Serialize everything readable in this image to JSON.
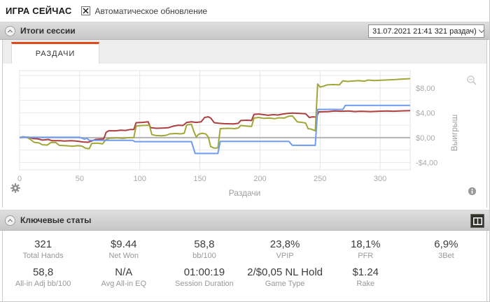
{
  "top_bar": {
    "title": "ИГРА СЕЙЧАС",
    "auto_update_label": "Автоматическое обновление",
    "auto_update_checked": true
  },
  "session_panel": {
    "header": "Итоги сессии",
    "session_select_value": "31.07.2021 21:41 321 раздач)",
    "tab_label": "РАЗДАЧИ"
  },
  "chart_data": {
    "type": "line",
    "title": "",
    "xlabel": "Раздачи",
    "ylabel": "Выигрыш",
    "xlim": [
      0,
      325
    ],
    "ylim": [
      -5.2,
      10.8
    ],
    "x_ticks": [
      0,
      50,
      100,
      150,
      200,
      250,
      300
    ],
    "y_grid_step": 2,
    "y_tick_labels": [
      {
        "value": 8,
        "label": "$8,00"
      },
      {
        "value": 4,
        "label": "$4,00"
      },
      {
        "value": 0,
        "label": "$0,00"
      },
      {
        "value": -4,
        "label": "-$4,00"
      }
    ],
    "zero_line_color": "#b3b3b3",
    "grid_color": "#e6e6e6",
    "legend": "none",
    "series": [
      {
        "name": "red-line",
        "color": "#ad3f3f",
        "points": [
          [
            0,
            0
          ],
          [
            4,
            0.1
          ],
          [
            8,
            0.05
          ],
          [
            11,
            -0.15
          ],
          [
            15,
            -0.2
          ],
          [
            19,
            -0.4
          ],
          [
            24,
            -0.3
          ],
          [
            27,
            -0.5
          ],
          [
            34,
            -0.5
          ],
          [
            37,
            -0.55
          ],
          [
            43,
            -0.5
          ],
          [
            47,
            -0.55
          ],
          [
            53,
            -0.7
          ],
          [
            57,
            -0.75
          ],
          [
            60,
            -0.55
          ],
          [
            63,
            -0.3
          ],
          [
            66,
            -0.25
          ],
          [
            70,
            -0.2
          ],
          [
            72,
            0.85
          ],
          [
            74,
            1.1
          ],
          [
            80,
            1.1
          ],
          [
            84,
            1.2
          ],
          [
            88,
            1.15
          ],
          [
            92,
            1.3
          ],
          [
            95,
            1.3
          ],
          [
            97,
            2.4
          ],
          [
            102,
            2.45
          ],
          [
            107,
            2.55
          ],
          [
            109,
            1.6
          ],
          [
            114,
            1.5
          ],
          [
            120,
            1.55
          ],
          [
            124,
            1.6
          ],
          [
            128,
            1.85
          ],
          [
            132,
            2.0
          ],
          [
            136,
            1.95
          ],
          [
            139,
            2.45
          ],
          [
            143,
            2.55
          ],
          [
            147,
            2.45
          ],
          [
            151,
            2.55
          ],
          [
            154,
            3.25
          ],
          [
            157,
            3.35
          ],
          [
            159,
            3.15
          ],
          [
            162,
            2.4
          ],
          [
            166,
            2.3
          ],
          [
            170,
            2.25
          ],
          [
            178,
            2.2
          ],
          [
            182,
            2.3
          ],
          [
            184,
            2.75
          ],
          [
            189,
            2.8
          ],
          [
            193,
            2.75
          ],
          [
            195,
            3.75
          ],
          [
            199,
            3.8
          ],
          [
            203,
            3.7
          ],
          [
            207,
            3.6
          ],
          [
            211,
            3.7
          ],
          [
            215,
            3.65
          ],
          [
            219,
            3.8
          ],
          [
            223,
            3.9
          ],
          [
            227,
            3.95
          ],
          [
            233,
            3.9
          ],
          [
            238,
            3.85
          ],
          [
            241,
            3.25
          ],
          [
            244,
            3.35
          ],
          [
            247,
            3.3
          ],
          [
            249,
            4.15
          ],
          [
            257,
            4.2
          ],
          [
            262,
            4.3
          ],
          [
            268,
            4.25
          ],
          [
            274,
            4.3
          ],
          [
            279,
            4.2
          ],
          [
            284,
            4.25
          ],
          [
            292,
            4.2
          ],
          [
            299,
            4.25
          ],
          [
            306,
            4.3
          ],
          [
            311,
            4.25
          ],
          [
            316,
            4.3
          ],
          [
            325,
            4.35
          ]
        ]
      },
      {
        "name": "olive-line",
        "color": "#a2a636",
        "points": [
          [
            0,
            0
          ],
          [
            3,
            0.15
          ],
          [
            6,
            0.05
          ],
          [
            9,
            -0.3
          ],
          [
            12,
            -0.75
          ],
          [
            16,
            -0.85
          ],
          [
            19,
            -1.15
          ],
          [
            23,
            -1.2
          ],
          [
            26,
            -0.8
          ],
          [
            30,
            -0.78
          ],
          [
            33,
            -1.25
          ],
          [
            38,
            -1.3
          ],
          [
            44,
            -1.38
          ],
          [
            49,
            -1.3
          ],
          [
            52,
            -1.38
          ],
          [
            55,
            -1.72
          ],
          [
            58,
            -1.78
          ],
          [
            60,
            -0.95
          ],
          [
            65,
            -0.9
          ],
          [
            69,
            -1.0
          ],
          [
            72,
            -0.3
          ],
          [
            75,
            -0.1
          ],
          [
            81,
            -0.05
          ],
          [
            86,
            -0.12
          ],
          [
            90,
            -0.02
          ],
          [
            95,
            0.0
          ],
          [
            97,
            1.85
          ],
          [
            102,
            1.95
          ],
          [
            108,
            2.0
          ],
          [
            110,
            0.5
          ],
          [
            113,
            0.35
          ],
          [
            118,
            0.3
          ],
          [
            122,
            0.38
          ],
          [
            125,
            0.6
          ],
          [
            130,
            0.66
          ],
          [
            134,
            0.6
          ],
          [
            137,
            0.72
          ],
          [
            139,
            2.05
          ],
          [
            143,
            2.15
          ],
          [
            145,
            0.95
          ],
          [
            147,
            0.1
          ],
          [
            149,
            0.55
          ],
          [
            152,
            0.7
          ],
          [
            155,
            0.58
          ],
          [
            157,
            0.1
          ],
          [
            159,
            -1.45
          ],
          [
            162,
            -1.7
          ],
          [
            165,
            -1.65
          ],
          [
            167,
            1.45
          ],
          [
            174,
            1.5
          ],
          [
            179,
            1.45
          ],
          [
            182,
            1.55
          ],
          [
            184,
            1.95
          ],
          [
            189,
            1.85
          ],
          [
            193,
            1.8
          ],
          [
            195,
            3.15
          ],
          [
            199,
            3.25
          ],
          [
            203,
            3.1
          ],
          [
            208,
            3.15
          ],
          [
            212,
            3.05
          ],
          [
            216,
            3.2
          ],
          [
            220,
            3.15
          ],
          [
            224,
            3.45
          ],
          [
            227,
            3.5
          ],
          [
            231,
            2.55
          ],
          [
            235,
            2.45
          ],
          [
            238,
            2.35
          ],
          [
            240,
            1.45
          ],
          [
            243,
            1.35
          ],
          [
            246,
            1.1
          ],
          [
            248,
            8.65
          ],
          [
            250,
            8.15
          ],
          [
            253,
            8.3
          ],
          [
            256,
            8.5
          ],
          [
            261,
            8.55
          ],
          [
            266,
            8.5
          ],
          [
            269,
            9.15
          ],
          [
            273,
            9.05
          ],
          [
            277,
            9.12
          ],
          [
            282,
            9.18
          ],
          [
            287,
            9.1
          ],
          [
            290,
            9.28
          ],
          [
            295,
            9.2
          ],
          [
            301,
            9.24
          ],
          [
            307,
            9.3
          ],
          [
            312,
            9.35
          ],
          [
            317,
            9.42
          ],
          [
            325,
            9.5
          ]
        ]
      },
      {
        "name": "blue-line",
        "color": "#6e9bf3",
        "points": [
          [
            0,
            0
          ],
          [
            3,
            0.1
          ],
          [
            6,
            0.05
          ],
          [
            50,
            0.05
          ],
          [
            54,
            -0.25
          ],
          [
            56,
            -0.1
          ],
          [
            58,
            -0.45
          ],
          [
            94,
            -0.45
          ],
          [
            96,
            -0.65
          ],
          [
            143,
            -0.65
          ],
          [
            146,
            -2.55
          ],
          [
            165,
            -2.55
          ],
          [
            167,
            -0.6
          ],
          [
            224,
            -0.6
          ],
          [
            227,
            -1.25
          ],
          [
            246,
            -1.25
          ],
          [
            248,
            4.55
          ],
          [
            269,
            4.55
          ],
          [
            271,
            5.2
          ],
          [
            325,
            5.2
          ]
        ]
      }
    ]
  },
  "stats_panel": {
    "header": "Ключевые статы",
    "stats": [
      {
        "value": "321",
        "label": "Total Hands"
      },
      {
        "value": "$9.44",
        "label": "Net Won"
      },
      {
        "value": "58,8",
        "label": "bb/100"
      },
      {
        "value": "23,8%",
        "label": "VPIP"
      },
      {
        "value": "18,1%",
        "label": "PFR"
      },
      {
        "value": "6,9%",
        "label": "3Bet"
      },
      {
        "value": "58,8",
        "label": "All-in Adj bb/100"
      },
      {
        "value": "N/A",
        "label": "Avg All-in EQ"
      },
      {
        "value": "01:00:19",
        "label": "Session Duration"
      },
      {
        "value": "2/$0,05 NL Hold",
        "label": "Game Type"
      },
      {
        "value": "$1.24",
        "label": "Rake"
      },
      {
        "value": "",
        "label": ""
      }
    ]
  }
}
